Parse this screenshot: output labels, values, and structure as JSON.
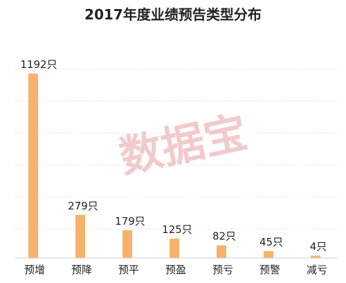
{
  "colors": {
    "bar": "#f7b269",
    "text": "#222222",
    "watermark": "#e8a0a6"
  },
  "watermark": "数据宝",
  "chart_data": {
    "type": "bar",
    "title": "2017年度业绩预告类型分布",
    "categories": [
      "预增",
      "预降",
      "预平",
      "预盈",
      "预亏",
      "预警",
      "减亏"
    ],
    "values": [
      1192,
      279,
      179,
      125,
      82,
      45,
      4
    ],
    "data_labels": [
      "1192只",
      "279只",
      "179只",
      "125只",
      "82只",
      "45只",
      "4只"
    ],
    "ylim": [
      0,
      1300
    ],
    "grid": true,
    "xlabel": "",
    "ylabel": ""
  }
}
